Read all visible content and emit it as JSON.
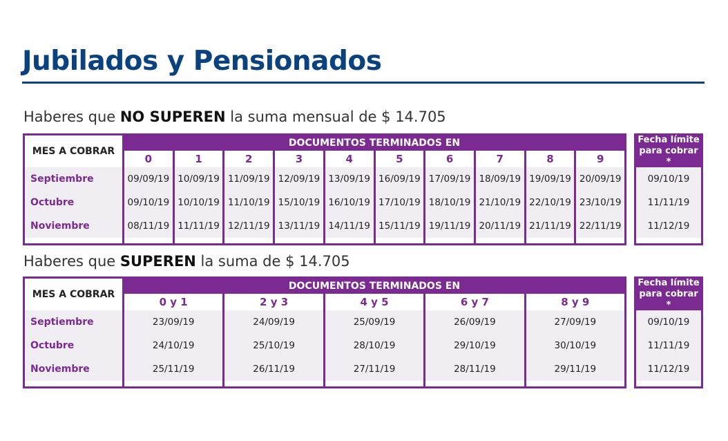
{
  "title": "Jubilados y Pensionados",
  "section1": {
    "subtitle_pre": "Haberes que ",
    "subtitle_bold": "NO SUPEREN",
    "subtitle_post": " la suma mensual de $ 14.705",
    "mes_header": "MES A COBRAR",
    "docs_header": "DOCUMENTOS TERMINADOS EN",
    "columns": [
      "0",
      "1",
      "2",
      "3",
      "4",
      "5",
      "6",
      "7",
      "8",
      "9"
    ],
    "rows": [
      {
        "mes": "Septiembre",
        "values": [
          "09/09/19",
          "10/09/19",
          "11/09/19",
          "12/09/19",
          "13/09/19",
          "16/09/19",
          "17/09/19",
          "18/09/19",
          "19/09/19",
          "20/09/19"
        ]
      },
      {
        "mes": "Octubre",
        "values": [
          "09/10/19",
          "10/10/19",
          "11/10/19",
          "15/10/19",
          "16/10/19",
          "17/10/19",
          "18/10/19",
          "21/10/19",
          "22/10/19",
          "23/10/19"
        ]
      },
      {
        "mes": "Noviembre",
        "values": [
          "08/11/19",
          "11/11/19",
          "12/11/19",
          "13/11/19",
          "14/11/19",
          "15/11/19",
          "19/11/19",
          "20/11/19",
          "21/11/19",
          "22/11/19"
        ]
      }
    ],
    "limit_header_line1": "Fecha límite",
    "limit_header_line2": "para cobrar *",
    "limits": [
      "09/10/19",
      "11/11/19",
      "11/12/19"
    ]
  },
  "section2": {
    "subtitle_pre": "Haberes que ",
    "subtitle_bold": "SUPEREN",
    "subtitle_post": " la suma de $ 14.705",
    "mes_header": "MES A COBRAR",
    "docs_header": "DOCUMENTOS TERMINADOS EN",
    "columns": [
      "0 y 1",
      "2 y 3",
      "4 y 5",
      "6 y 7",
      "8 y 9"
    ],
    "rows": [
      {
        "mes": "Septiembre",
        "values": [
          "23/09/19",
          "24/09/19",
          "25/09/19",
          "26/09/19",
          "27/09/19"
        ]
      },
      {
        "mes": "Octubre",
        "values": [
          "24/10/19",
          "25/10/19",
          "28/10/19",
          "29/10/19",
          "30/10/19"
        ]
      },
      {
        "mes": "Noviembre",
        "values": [
          "25/11/19",
          "26/11/19",
          "27/11/19",
          "28/11/19",
          "29/11/19"
        ]
      }
    ],
    "limit_header_line1": "Fecha límite",
    "limit_header_line2": "para cobrar *",
    "limits": [
      "09/10/19",
      "11/11/19",
      "11/12/19"
    ]
  },
  "colors": {
    "title_blue": "#0a4280",
    "purple": "#7b2a91",
    "row_shade": "#f0eef2"
  }
}
